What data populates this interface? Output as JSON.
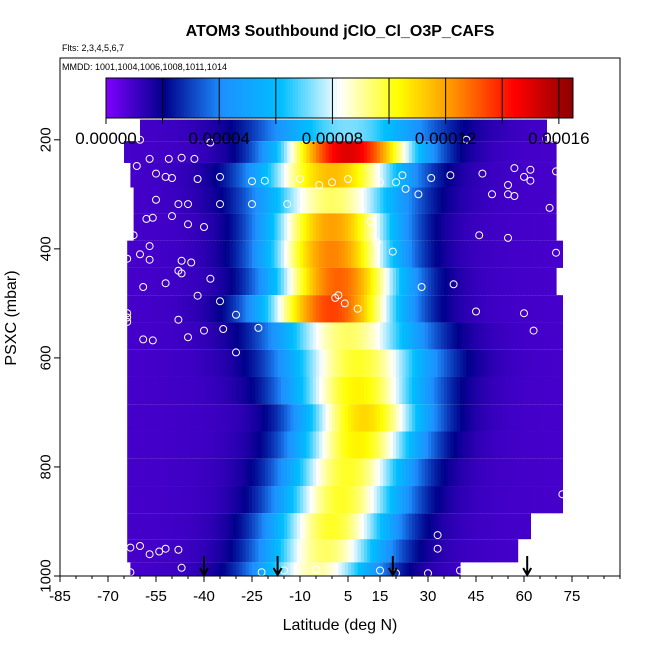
{
  "chart_data": {
    "type": "heatmap",
    "title": "ATOM3 Southbound jClO_Cl_O3P_CAFS",
    "flights_note": "Flts: 2,3,4,5,6,7",
    "dates_note": "MMDD: 1001,1004,1006,1008,1011,1014",
    "xlabel": "Latitude (deg N)",
    "ylabel": "PSXC (mbar)",
    "xlim": [
      -85,
      90
    ],
    "ylim": [
      1000,
      50
    ],
    "x_ticks": [
      -85,
      -70,
      -55,
      -40,
      -25,
      -10,
      5,
      15,
      30,
      45,
      60,
      75
    ],
    "y_ticks": [
      200,
      400,
      600,
      800,
      1000
    ],
    "colorbar": {
      "min": 0.0,
      "max": 0.000165,
      "ticks": [
        "0.00000",
        "0.00004",
        "0.00008",
        "0.00012",
        "0.00016"
      ],
      "tick_values": [
        0.0,
        4e-05,
        8e-05,
        0.00012,
        0.00016
      ],
      "band_edges": [
        0.0,
        2e-05,
        4e-05,
        6e-05,
        8e-05,
        0.0001,
        0.00012,
        0.00014,
        0.00016
      ],
      "colors": [
        "#7f00ff",
        "#00008b",
        "#1e90ff",
        "#00bfff",
        "#ffffff",
        "#ffff00",
        "#ff8c00",
        "#ff0000",
        "#8b0000"
      ]
    },
    "profile_arrows_lat": [
      -40,
      -17,
      19,
      61
    ],
    "rows": [
      {
        "p": 185,
        "lat_min": -60,
        "lat_max": 67,
        "peak": 7.2e-05,
        "peak_lat": 5,
        "width": 32
      },
      {
        "p": 220,
        "lat_min": -65,
        "lat_max": 70,
        "peak": 0.00015,
        "peak_lat": 5,
        "width": 26
      },
      {
        "p": 265,
        "lat_min": -63,
        "lat_max": 70,
        "peak": 0.000115,
        "peak_lat": 0,
        "width": 28
      },
      {
        "p": 310,
        "lat_min": -62,
        "lat_max": 70,
        "peak": 9.5e-05,
        "peak_lat": 0,
        "width": 28
      },
      {
        "p": 360,
        "lat_min": -62,
        "lat_max": 70,
        "peak": 0.00012,
        "peak_lat": 0,
        "width": 25
      },
      {
        "p": 410,
        "lat_min": -64,
        "lat_max": 72,
        "peak": 0.000125,
        "peak_lat": 0,
        "width": 25
      },
      {
        "p": 460,
        "lat_min": -64,
        "lat_max": 70,
        "peak": 0.00013,
        "peak_lat": 2,
        "width": 25
      },
      {
        "p": 510,
        "lat_min": -64,
        "lat_max": 72,
        "peak": 0.000135,
        "peak_lat": 0,
        "width": 26
      },
      {
        "p": 560,
        "lat_min": -64,
        "lat_max": 72,
        "peak": 9.5e-05,
        "peak_lat": 5,
        "width": 28
      },
      {
        "p": 610,
        "lat_min": -64,
        "lat_max": 72,
        "peak": 0.0001,
        "peak_lat": 8,
        "width": 28
      },
      {
        "p": 660,
        "lat_min": -64,
        "lat_max": 72,
        "peak": 0.000105,
        "peak_lat": 8,
        "width": 26
      },
      {
        "p": 710,
        "lat_min": -64,
        "lat_max": 72,
        "peak": 0.00011,
        "peak_lat": 10,
        "width": 24
      },
      {
        "p": 760,
        "lat_min": -64,
        "lat_max": 72,
        "peak": 0.000105,
        "peak_lat": 8,
        "width": 24
      },
      {
        "p": 810,
        "lat_min": -64,
        "lat_max": 72,
        "peak": 0.0001,
        "peak_lat": 5,
        "width": 24
      },
      {
        "p": 860,
        "lat_min": -64,
        "lat_max": 72,
        "peak": 0.0001,
        "peak_lat": 3,
        "width": 24
      },
      {
        "p": 910,
        "lat_min": -64,
        "lat_max": 62,
        "peak": 0.0001,
        "peak_lat": 0,
        "width": 24
      },
      {
        "p": 955,
        "lat_min": -64,
        "lat_max": 58,
        "peak": 9.5e-05,
        "peak_lat": -2,
        "width": 24
      },
      {
        "p": 995,
        "lat_min": -63,
        "lat_max": 40,
        "peak": 9e-05,
        "peak_lat": -5,
        "width": 24
      }
    ],
    "points": [
      [
        -60,
        200
      ],
      [
        -57,
        235
      ],
      [
        -51,
        235
      ],
      [
        -47,
        233
      ],
      [
        -43,
        235
      ],
      [
        -38,
        205
      ],
      [
        -61,
        248
      ],
      [
        -55,
        262
      ],
      [
        -52,
        268
      ],
      [
        -50,
        270
      ],
      [
        -42,
        272
      ],
      [
        -35,
        268
      ],
      [
        -21,
        275
      ],
      [
        -25,
        276
      ],
      [
        -48,
        318
      ],
      [
        -45,
        318
      ],
      [
        -35,
        318
      ],
      [
        -14,
        318
      ],
      [
        -25,
        318
      ],
      [
        -56,
        343
      ],
      [
        -50,
        340
      ],
      [
        -45,
        355
      ],
      [
        -40,
        360
      ],
      [
        -62,
        375
      ],
      [
        -57,
        395
      ],
      [
        -60,
        410
      ],
      [
        -64,
        418
      ],
      [
        -57,
        420
      ],
      [
        -47,
        422
      ],
      [
        -44,
        425
      ],
      [
        -48,
        440
      ],
      [
        -47,
        445
      ],
      [
        -38,
        455
      ],
      [
        -52,
        463
      ],
      [
        -59,
        470
      ],
      [
        -42,
        486
      ],
      [
        -35,
        496
      ],
      [
        -64,
        518
      ],
      [
        -64,
        526
      ],
      [
        -64,
        534
      ],
      [
        -48,
        530
      ],
      [
        -30,
        521
      ],
      [
        -23,
        545
      ],
      [
        -34,
        547
      ],
      [
        -40,
        550
      ],
      [
        -45,
        562
      ],
      [
        -59,
        566
      ],
      [
        -56,
        568
      ],
      [
        -30,
        590
      ],
      [
        -60,
        945
      ],
      [
        -63,
        948
      ],
      [
        -52,
        950
      ],
      [
        -48,
        952
      ],
      [
        -54,
        955
      ],
      [
        -47,
        985
      ],
      [
        -63,
        993
      ],
      [
        -57,
        960
      ],
      [
        -15,
        990
      ],
      [
        -22,
        993
      ],
      [
        -5,
        988
      ],
      [
        15,
        990
      ],
      [
        30,
        995
      ],
      [
        40,
        990
      ],
      [
        45,
        995
      ],
      [
        33,
        950
      ],
      [
        33,
        925
      ],
      [
        20,
        995
      ],
      [
        19,
        405
      ],
      [
        5,
        272
      ],
      [
        0,
        278
      ],
      [
        2,
        485
      ],
      [
        1,
        490
      ],
      [
        4,
        500
      ],
      [
        8,
        510
      ],
      [
        15,
        278
      ],
      [
        -4,
        283
      ],
      [
        -10,
        272
      ],
      [
        22,
        265
      ],
      [
        31,
        270
      ],
      [
        37,
        265
      ],
      [
        47,
        262
      ],
      [
        57,
        252
      ],
      [
        62,
        255
      ],
      [
        67,
        198
      ],
      [
        69,
        198
      ],
      [
        70,
        258
      ],
      [
        60,
        268
      ],
      [
        55,
        283
      ],
      [
        50,
        300
      ],
      [
        46,
        375
      ],
      [
        38,
        465
      ],
      [
        28,
        470
      ],
      [
        45,
        515
      ],
      [
        60,
        518
      ],
      [
        63,
        550
      ],
      [
        70,
        407
      ],
      [
        57,
        303
      ],
      [
        55,
        300
      ],
      [
        62,
        275
      ],
      [
        55,
        380
      ],
      [
        42,
        200
      ],
      [
        -62,
        190
      ],
      [
        23,
        290
      ],
      [
        12,
        350
      ],
      [
        20,
        278
      ],
      [
        27,
        300
      ],
      [
        14,
        388
      ],
      [
        68,
        325
      ],
      [
        -58,
        345
      ],
      [
        -55,
        310
      ],
      [
        72,
        850
      ]
    ]
  }
}
